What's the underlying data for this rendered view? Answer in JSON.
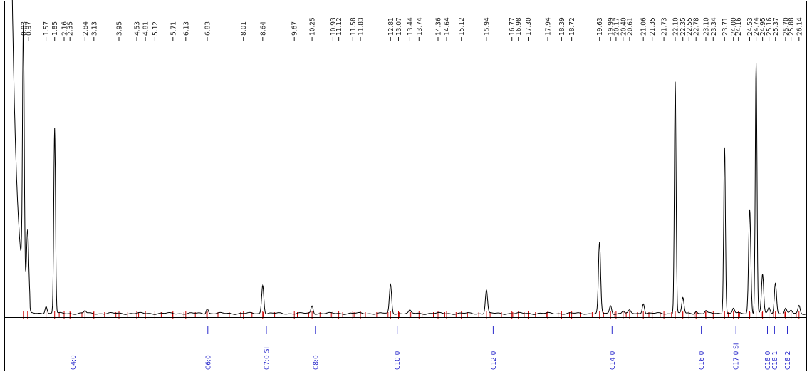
{
  "colors": {
    "trace": "#000000",
    "baseline_markers": "#cc0000",
    "compound_labels": "#2b2bcc",
    "retention_labels": "#222222",
    "frame": "#000000"
  },
  "chart_data": {
    "type": "line",
    "title": "",
    "xlabel": "",
    "ylabel": "",
    "xlim": [
      0.3,
      26.4
    ],
    "ylim": [
      0,
      100
    ],
    "grid": false,
    "legend": "none",
    "retention_time_labels": [
      "0.83",
      "0.97",
      "1.57",
      "1.85",
      "2.16",
      "2.35",
      "2.84",
      "3.13",
      "3.95",
      "4.53",
      "4.81",
      "5.12",
      "5.71",
      "6.13",
      "6.83",
      "8.01",
      "8.64",
      "9.67",
      "10.25",
      "10.93",
      "11.12",
      "11.58",
      "11.83",
      "12.81",
      "13.07",
      "13.44",
      "13.74",
      "14.36",
      "14.64",
      "15.12",
      "15.94",
      "16.77",
      "16.98",
      "17.30",
      "17.94",
      "18.39",
      "18.72",
      "19.63",
      "19.99",
      "20.17",
      "20.40",
      "20.61",
      "21.06",
      "21.35",
      "21.73",
      "22.10",
      "22.35",
      "22.55",
      "22.78",
      "23.10",
      "23.34",
      "23.71",
      "24.00",
      "24.16",
      "24.53",
      "24.74",
      "24.95",
      "25.16",
      "25.37",
      "25.70",
      "25.88",
      "26.14"
    ],
    "peaks": [
      {
        "rt": 0.83,
        "height": 97
      },
      {
        "rt": 0.97,
        "height": 26
      },
      {
        "rt": 1.57,
        "height": 3
      },
      {
        "rt": 1.85,
        "height": 71
      },
      {
        "rt": 2.84,
        "height": 1
      },
      {
        "rt": 6.83,
        "height": 2
      },
      {
        "rt": 8.64,
        "height": 11
      },
      {
        "rt": 10.25,
        "height": 3
      },
      {
        "rt": 12.81,
        "height": 11
      },
      {
        "rt": 13.44,
        "height": 1
      },
      {
        "rt": 15.94,
        "height": 9
      },
      {
        "rt": 19.63,
        "height": 27
      },
      {
        "rt": 19.99,
        "height": 3
      },
      {
        "rt": 20.4,
        "height": 1
      },
      {
        "rt": 20.61,
        "height": 1
      },
      {
        "rt": 21.06,
        "height": 4
      },
      {
        "rt": 22.1,
        "height": 89
      },
      {
        "rt": 22.35,
        "height": 6
      },
      {
        "rt": 22.78,
        "height": 1
      },
      {
        "rt": 23.1,
        "height": 1
      },
      {
        "rt": 23.71,
        "height": 64
      },
      {
        "rt": 24.0,
        "height": 2
      },
      {
        "rt": 24.53,
        "height": 40
      },
      {
        "rt": 24.74,
        "height": 96
      },
      {
        "rt": 24.95,
        "height": 15
      },
      {
        "rt": 25.16,
        "height": 2
      },
      {
        "rt": 25.37,
        "height": 12
      },
      {
        "rt": 25.7,
        "height": 2
      },
      {
        "rt": 25.88,
        "height": 1
      },
      {
        "rt": 26.14,
        "height": 3
      }
    ],
    "compound_markers": [
      {
        "label": "C4:0",
        "rt": 2.45
      },
      {
        "label": "C6:0",
        "rt": 6.85
      },
      {
        "label": "C7:0 SI",
        "rt": 8.76
      },
      {
        "label": "C8:0",
        "rt": 10.36
      },
      {
        "label": "C10 0",
        "rt": 13.03
      },
      {
        "label": "C12 0",
        "rt": 16.16
      },
      {
        "label": "C14 0",
        "rt": 20.04
      },
      {
        "label": "C16 0",
        "rt": 22.95
      },
      {
        "label": "C17 0 SI",
        "rt": 24.08
      },
      {
        "label": "C18 0",
        "rt": 25.11
      },
      {
        "label": "C18 1",
        "rt": 25.34
      },
      {
        "label": "C18 2",
        "rt": 25.76
      }
    ]
  }
}
